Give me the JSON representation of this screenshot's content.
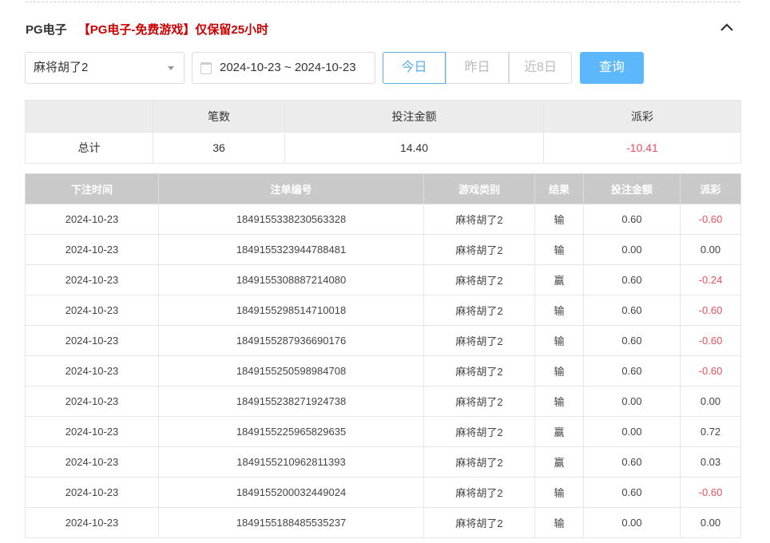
{
  "header": {
    "title": "PG电子",
    "notice": "【PG电子-免费游戏】仅保留25小时"
  },
  "filters": {
    "game": "麻将胡了2",
    "date_range": "2024-10-23 ~ 2024-10-23",
    "quick": [
      "今日",
      "昨日",
      "近8日"
    ],
    "active_quick": "今日",
    "query_label": "查询"
  },
  "summary": {
    "headers": [
      "",
      "笔数",
      "投注金额",
      "派彩"
    ],
    "row": [
      "总计",
      "36",
      "14.40",
      "-10.41"
    ]
  },
  "table": {
    "headers": [
      "下注时间",
      "注单编号",
      "游戏类别",
      "结果",
      "投注金额",
      "派彩"
    ],
    "rows": [
      [
        "2024-10-23",
        "1849155338230563328",
        "麻将胡了2",
        "输",
        "0.60",
        "-0.60"
      ],
      [
        "2024-10-23",
        "1849155323944788481",
        "麻将胡了2",
        "输",
        "0.00",
        "0.00"
      ],
      [
        "2024-10-23",
        "1849155308887214080",
        "麻将胡了2",
        "赢",
        "0.60",
        "-0.24"
      ],
      [
        "2024-10-23",
        "1849155298514710018",
        "麻将胡了2",
        "输",
        "0.60",
        "-0.60"
      ],
      [
        "2024-10-23",
        "1849155287936690176",
        "麻将胡了2",
        "输",
        "0.60",
        "-0.60"
      ],
      [
        "2024-10-23",
        "1849155250598984708",
        "麻将胡了2",
        "输",
        "0.60",
        "-0.60"
      ],
      [
        "2024-10-23",
        "1849155238271924738",
        "麻将胡了2",
        "输",
        "0.00",
        "0.00"
      ],
      [
        "2024-10-23",
        "1849155225965829635",
        "麻将胡了2",
        "赢",
        "0.00",
        "0.72"
      ],
      [
        "2024-10-23",
        "1849155210962811393",
        "麻将胡了2",
        "赢",
        "0.60",
        "0.03"
      ],
      [
        "2024-10-23",
        "1849155200032449024",
        "麻将胡了2",
        "输",
        "0.60",
        "-0.60"
      ],
      [
        "2024-10-23",
        "1849155188485535237",
        "麻将胡了2",
        "输",
        "0.00",
        "0.00"
      ]
    ]
  },
  "colors": {
    "accent": "#5cb8fb",
    "negative": "#e8505b",
    "notice": "#cc0000"
  }
}
